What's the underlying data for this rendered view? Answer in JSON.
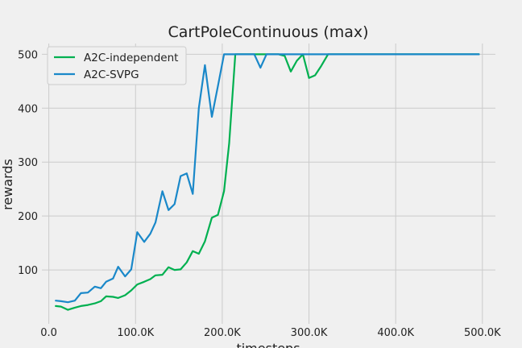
{
  "chart_data": {
    "type": "line",
    "title": "CartPoleContinuous (max)",
    "xlabel": "timesteps",
    "ylabel": "rewards",
    "xlim": [
      -8000,
      515000
    ],
    "ylim": [
      0,
      520
    ],
    "grid": true,
    "legend_position": "top-left",
    "x_ticks": [
      {
        "value": 0,
        "label": "0.0"
      },
      {
        "value": 100000,
        "label": "100.0K"
      },
      {
        "value": 200000,
        "label": "200.0K"
      },
      {
        "value": 300000,
        "label": "300.0K"
      },
      {
        "value": 400000,
        "label": "400.0K"
      },
      {
        "value": 500000,
        "label": "500.0K"
      }
    ],
    "y_ticks": [
      {
        "value": 100,
        "label": "100"
      },
      {
        "value": 200,
        "label": "200"
      },
      {
        "value": 300,
        "label": "300"
      },
      {
        "value": 400,
        "label": "400"
      },
      {
        "value": 500,
        "label": "500"
      }
    ],
    "series": [
      {
        "name": "A2C-independent",
        "color": "#00b050",
        "points": [
          [
            8000,
            33
          ],
          [
            14000,
            32
          ],
          [
            22000,
            26
          ],
          [
            30000,
            30
          ],
          [
            37000,
            33
          ],
          [
            45000,
            35
          ],
          [
            53000,
            38
          ],
          [
            60000,
            42
          ],
          [
            66000,
            51
          ],
          [
            74000,
            50
          ],
          [
            80000,
            48
          ],
          [
            88000,
            53
          ],
          [
            95000,
            62
          ],
          [
            102000,
            73
          ],
          [
            110000,
            78
          ],
          [
            117000,
            83
          ],
          [
            123000,
            90
          ],
          [
            131000,
            91
          ],
          [
            138000,
            105
          ],
          [
            145000,
            100
          ],
          [
            152000,
            101
          ],
          [
            159000,
            114
          ],
          [
            166000,
            135
          ],
          [
            173000,
            130
          ],
          [
            180000,
            153
          ],
          [
            188000,
            197
          ],
          [
            195000,
            202
          ],
          [
            202000,
            246
          ],
          [
            208000,
            335
          ],
          [
            215000,
            500
          ],
          [
            222000,
            500
          ],
          [
            230000,
            500
          ],
          [
            237000,
            500
          ],
          [
            244000,
            500
          ],
          [
            251000,
            500
          ],
          [
            258000,
            500
          ],
          [
            265000,
            500
          ],
          [
            272000,
            497
          ],
          [
            279000,
            468
          ],
          [
            286000,
            488
          ],
          [
            293000,
            500
          ],
          [
            300000,
            456
          ],
          [
            307000,
            461
          ],
          [
            314000,
            478
          ],
          [
            322000,
            500
          ],
          [
            330000,
            500
          ],
          [
            350000,
            500
          ],
          [
            400000,
            500
          ],
          [
            450000,
            500
          ],
          [
            496000,
            500
          ]
        ]
      },
      {
        "name": "A2C-SVPG",
        "color": "#1a88c9",
        "points": [
          [
            8000,
            43
          ],
          [
            14000,
            42
          ],
          [
            22000,
            40
          ],
          [
            30000,
            43
          ],
          [
            37000,
            57
          ],
          [
            45000,
            58
          ],
          [
            53000,
            69
          ],
          [
            60000,
            66
          ],
          [
            66000,
            78
          ],
          [
            74000,
            84
          ],
          [
            80000,
            106
          ],
          [
            88000,
            88
          ],
          [
            95000,
            101
          ],
          [
            102000,
            170
          ],
          [
            110000,
            152
          ],
          [
            117000,
            167
          ],
          [
            123000,
            188
          ],
          [
            131000,
            246
          ],
          [
            138000,
            211
          ],
          [
            145000,
            222
          ],
          [
            152000,
            274
          ],
          [
            159000,
            279
          ],
          [
            166000,
            241
          ],
          [
            173000,
            400
          ],
          [
            180000,
            480
          ],
          [
            188000,
            384
          ],
          [
            195000,
            441
          ],
          [
            202000,
            500
          ],
          [
            208000,
            500
          ],
          [
            215000,
            500
          ],
          [
            222000,
            500
          ],
          [
            230000,
            500
          ],
          [
            237000,
            500
          ],
          [
            244000,
            475
          ],
          [
            251000,
            500
          ],
          [
            258000,
            500
          ],
          [
            265000,
            500
          ],
          [
            272000,
            500
          ],
          [
            280000,
            500
          ],
          [
            300000,
            500
          ],
          [
            350000,
            500
          ],
          [
            400000,
            500
          ],
          [
            450000,
            500
          ],
          [
            496000,
            500
          ]
        ]
      }
    ]
  }
}
